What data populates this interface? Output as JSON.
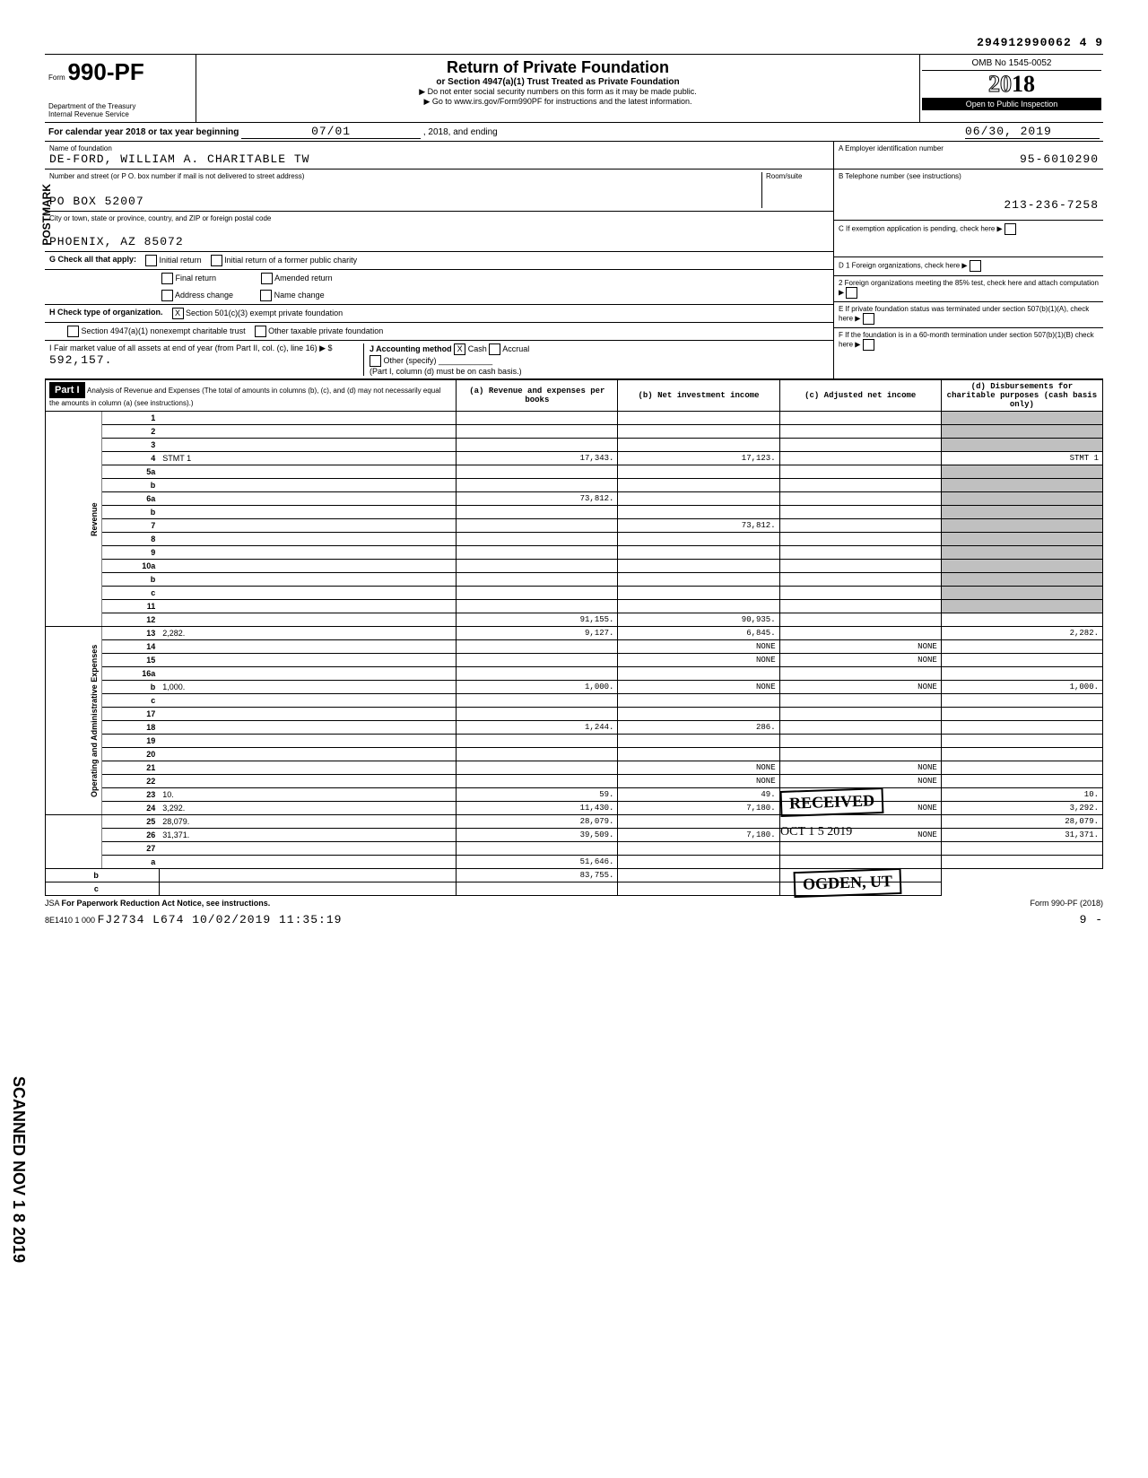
{
  "dln": "294912990062 4  9",
  "header": {
    "form_label": "Form",
    "form_number": "990-PF",
    "dept": "Department of the Treasury",
    "irs": "Internal Revenue Service",
    "title": "Return of Private Foundation",
    "subtitle1": "or Section 4947(a)(1) Trust Treated as Private Foundation",
    "subtitle2": "▶ Do not enter social security numbers on this form as it may be made public.",
    "subtitle3": "▶ Go to www.irs.gov/Form990PF for instructions and the latest information.",
    "omb": "OMB No 1545-0052",
    "year_prefix": "20",
    "year_suffix": "18",
    "open": "Open to Public Inspection"
  },
  "calendar": {
    "text1": "For calendar year 2018 or tax year beginning",
    "begin": "07/01",
    "text2": ", 2018, and ending",
    "end": "06/30, 2019"
  },
  "entity": {
    "name_label": "Name of foundation",
    "name": "DE-FORD, WILLIAM A. CHARITABLE TW",
    "addr_label": "Number and street (or P O. box number if mail is not delivered to street address)",
    "room_label": "Room/suite",
    "addr": "PO BOX 52007",
    "city_label": "City or town, state or province, country, and ZIP or foreign postal code",
    "city": "PHOENIX, AZ 85072",
    "ein_label": "A  Employer identification number",
    "ein": "95-6010290",
    "phone_label": "B  Telephone number (see instructions)",
    "phone": "213-236-7258",
    "c_label": "C  If exemption application is pending, check here",
    "d1": "D  1  Foreign organizations, check here",
    "d2": "2  Foreign organizations meeting the 85% test, check here and attach computation",
    "e": "E  If private foundation status was terminated under section 507(b)(1)(A), check here",
    "f": "F  If the foundation is in a 60-month termination under section 507(b)(1)(B) check here"
  },
  "checks": {
    "g": "G  Check all that apply:",
    "initial": "Initial return",
    "initial_former": "Initial return of a former public charity",
    "final": "Final return",
    "amended": "Amended return",
    "addr_change": "Address change",
    "name_change": "Name change",
    "h": "H  Check type of organization.",
    "sec501": "Section 501(c)(3) exempt private foundation",
    "sec4947": "Section 4947(a)(1) nonexempt charitable trust",
    "other_tax": "Other taxable private foundation",
    "i": "I   Fair market value of all assets at end of year (from Part II, col. (c), line 16) ▶ $",
    "fmv": "592,157.",
    "j": "J  Accounting method",
    "cash": "Cash",
    "accrual": "Accrual",
    "other_spec": "Other (specify)",
    "note": "(Part I, column (d) must be on cash basis.)"
  },
  "part1": {
    "header": "Part I",
    "title": "Analysis of Revenue and Expenses (The total of amounts in columns (b), (c), and (d) may not necessarily equal the amounts in column (a) (see instructions).)",
    "col_a": "(a) Revenue and expenses per books",
    "col_b": "(b) Net investment income",
    "col_c": "(c) Adjusted net income",
    "col_d": "(d) Disbursements for charitable purposes (cash basis only)"
  },
  "sections": {
    "revenue": "Revenue",
    "expenses": "Operating and Administrative Expenses"
  },
  "lines": [
    {
      "n": "1",
      "d": "",
      "a": "",
      "b": "",
      "c": ""
    },
    {
      "n": "2",
      "d": "",
      "a": "",
      "b": "",
      "c": ""
    },
    {
      "n": "3",
      "d": "",
      "a": "",
      "b": "",
      "c": ""
    },
    {
      "n": "4",
      "d": "STMT 1",
      "a": "17,343.",
      "b": "17,123.",
      "c": ""
    },
    {
      "n": "5a",
      "d": "",
      "a": "",
      "b": "",
      "c": ""
    },
    {
      "n": "b",
      "d": "",
      "a": "",
      "b": "",
      "c": ""
    },
    {
      "n": "6a",
      "d": "",
      "a": "73,812.",
      "b": "",
      "c": ""
    },
    {
      "n": "b",
      "d": "",
      "a": "",
      "b": "",
      "c": ""
    },
    {
      "n": "7",
      "d": "",
      "a": "",
      "b": "73,812.",
      "c": ""
    },
    {
      "n": "8",
      "d": "",
      "a": "",
      "b": "",
      "c": ""
    },
    {
      "n": "9",
      "d": "",
      "a": "",
      "b": "",
      "c": ""
    },
    {
      "n": "10a",
      "d": "",
      "a": "",
      "b": "",
      "c": ""
    },
    {
      "n": "b",
      "d": "",
      "a": "",
      "b": "",
      "c": ""
    },
    {
      "n": "c",
      "d": "",
      "a": "",
      "b": "",
      "c": ""
    },
    {
      "n": "11",
      "d": "",
      "a": "",
      "b": "",
      "c": ""
    },
    {
      "n": "12",
      "d": "",
      "a": "91,155.",
      "b": "90,935.",
      "c": ""
    },
    {
      "n": "13",
      "d": "2,282.",
      "a": "9,127.",
      "b": "6,845.",
      "c": ""
    },
    {
      "n": "14",
      "d": "",
      "a": "",
      "b": "NONE",
      "c": "NONE"
    },
    {
      "n": "15",
      "d": "",
      "a": "",
      "b": "NONE",
      "c": "NONE"
    },
    {
      "n": "16a",
      "d": "",
      "a": "",
      "b": "",
      "c": ""
    },
    {
      "n": "b",
      "d": "1,000.",
      "a": "1,000.",
      "b": "NONE",
      "c": "NONE"
    },
    {
      "n": "c",
      "d": "",
      "a": "",
      "b": "",
      "c": ""
    },
    {
      "n": "17",
      "d": "",
      "a": "",
      "b": "",
      "c": ""
    },
    {
      "n": "18",
      "d": "",
      "a": "1,244.",
      "b": "286.",
      "c": ""
    },
    {
      "n": "19",
      "d": "",
      "a": "",
      "b": "",
      "c": ""
    },
    {
      "n": "20",
      "d": "",
      "a": "",
      "b": "",
      "c": ""
    },
    {
      "n": "21",
      "d": "",
      "a": "",
      "b": "NONE",
      "c": "NONE"
    },
    {
      "n": "22",
      "d": "",
      "a": "",
      "b": "NONE",
      "c": "NONE"
    },
    {
      "n": "23",
      "d": "10.",
      "a": "59.",
      "b": "49.",
      "c": ""
    },
    {
      "n": "24",
      "d": "3,292.",
      "a": "11,430.",
      "b": "7,180.",
      "c": "NONE"
    },
    {
      "n": "25",
      "d": "28,079.",
      "a": "28,079.",
      "b": "",
      "c": ""
    },
    {
      "n": "26",
      "d": "31,371.",
      "a": "39,509.",
      "b": "7,180.",
      "c": "NONE"
    },
    {
      "n": "27",
      "d": "",
      "a": "",
      "b": "",
      "c": ""
    },
    {
      "n": "a",
      "d": "",
      "a": "51,646.",
      "b": "",
      "c": ""
    },
    {
      "n": "b",
      "d": "",
      "a": "",
      "b": "83,755.",
      "c": ""
    },
    {
      "n": "c",
      "d": "",
      "a": "",
      "b": "",
      "c": ""
    }
  ],
  "footer": {
    "jsa": "JSA",
    "paperwork": "For Paperwork Reduction Act Notice, see instructions.",
    "code": "8E1410 1 000",
    "batch": "FJ2734 L674 10/02/2019 11:35:19",
    "form": "Form 990-PF (2018)",
    "page": "9   -"
  },
  "stamps": {
    "received": "RECEIVED",
    "date": "OCT 1 5 2019",
    "ogden": "OGDEN, UT",
    "scanned": "SCANNED NOV 1 8 2019",
    "postmark": "POSTMARK"
  }
}
